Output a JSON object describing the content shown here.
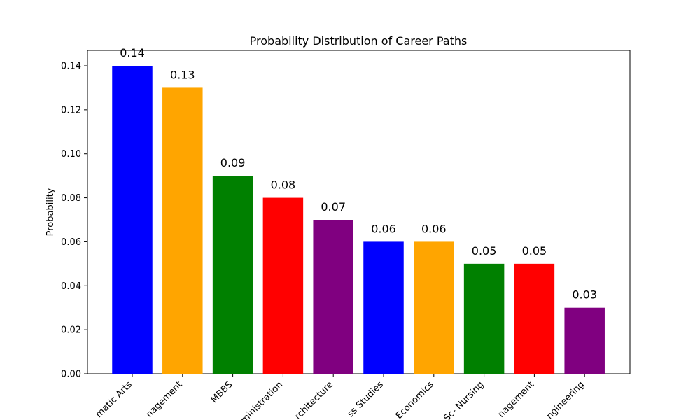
{
  "chart_data": {
    "type": "bar",
    "title": "Probability Distribution of Career Paths",
    "xlabel": "",
    "ylabel": "Probability",
    "ylim": [
      0,
      0.147
    ],
    "yticks": [
      0.0,
      0.02,
      0.04,
      0.06,
      0.08,
      0.1,
      0.12,
      0.14
    ],
    "categories": [
      "matic Arts",
      "nagement",
      "MBBS",
      "ministration",
      "rchitecture",
      "ss Studies",
      "Economics",
      "Sc- Nursing",
      "nagement",
      "ngineering"
    ],
    "values": [
      0.14,
      0.13,
      0.09,
      0.08,
      0.07,
      0.06,
      0.06,
      0.05,
      0.05,
      0.03
    ],
    "data_labels": [
      "0.14",
      "0.13",
      "0.09",
      "0.08",
      "0.07",
      "0.06",
      "0.06",
      "0.05",
      "0.05",
      "0.03"
    ],
    "colors": [
      "#0000ff",
      "#ffa500",
      "#008000",
      "#ff0000",
      "#800080",
      "#0000ff",
      "#ffa500",
      "#008000",
      "#ff0000",
      "#800080"
    ],
    "grid": false,
    "legend": "none"
  }
}
